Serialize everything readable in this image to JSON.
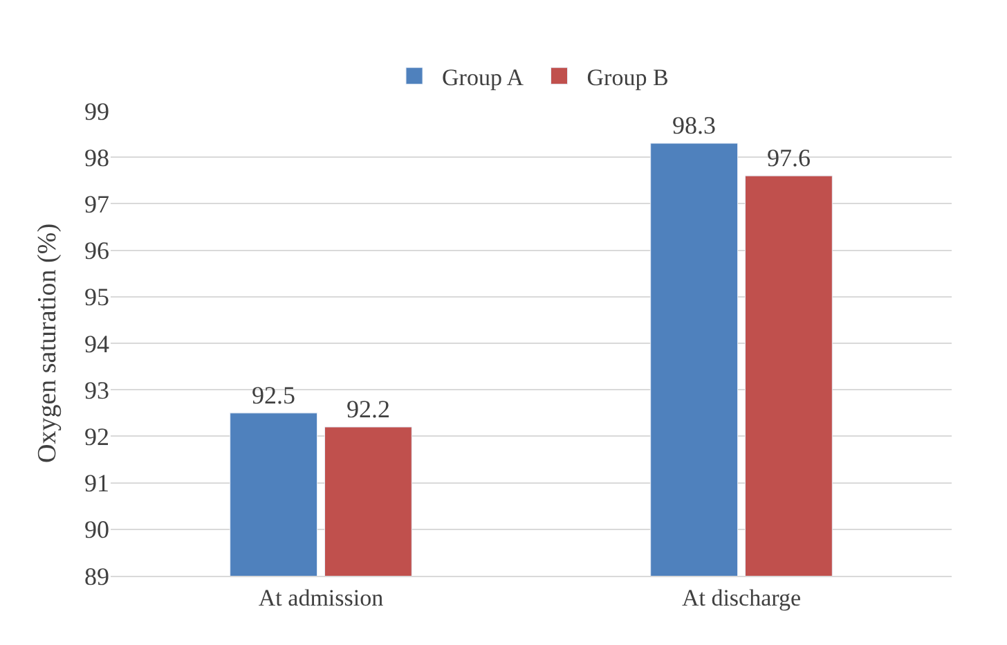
{
  "chart_data": {
    "type": "bar",
    "ylabel": "Oxygen saturation (%)",
    "categories": [
      "At admission",
      "At discharge"
    ],
    "series": [
      {
        "name": "Group A",
        "color": "#4f81bd",
        "values": [
          92.5,
          98.3
        ]
      },
      {
        "name": "Group B",
        "color": "#c0504d",
        "values": [
          92.2,
          97.6
        ]
      }
    ],
    "ylim": [
      89,
      99
    ],
    "yticks": [
      89,
      90,
      91,
      92,
      93,
      94,
      95,
      96,
      97,
      98,
      99
    ],
    "grid": "y",
    "legend": "top",
    "data_labels": true
  }
}
